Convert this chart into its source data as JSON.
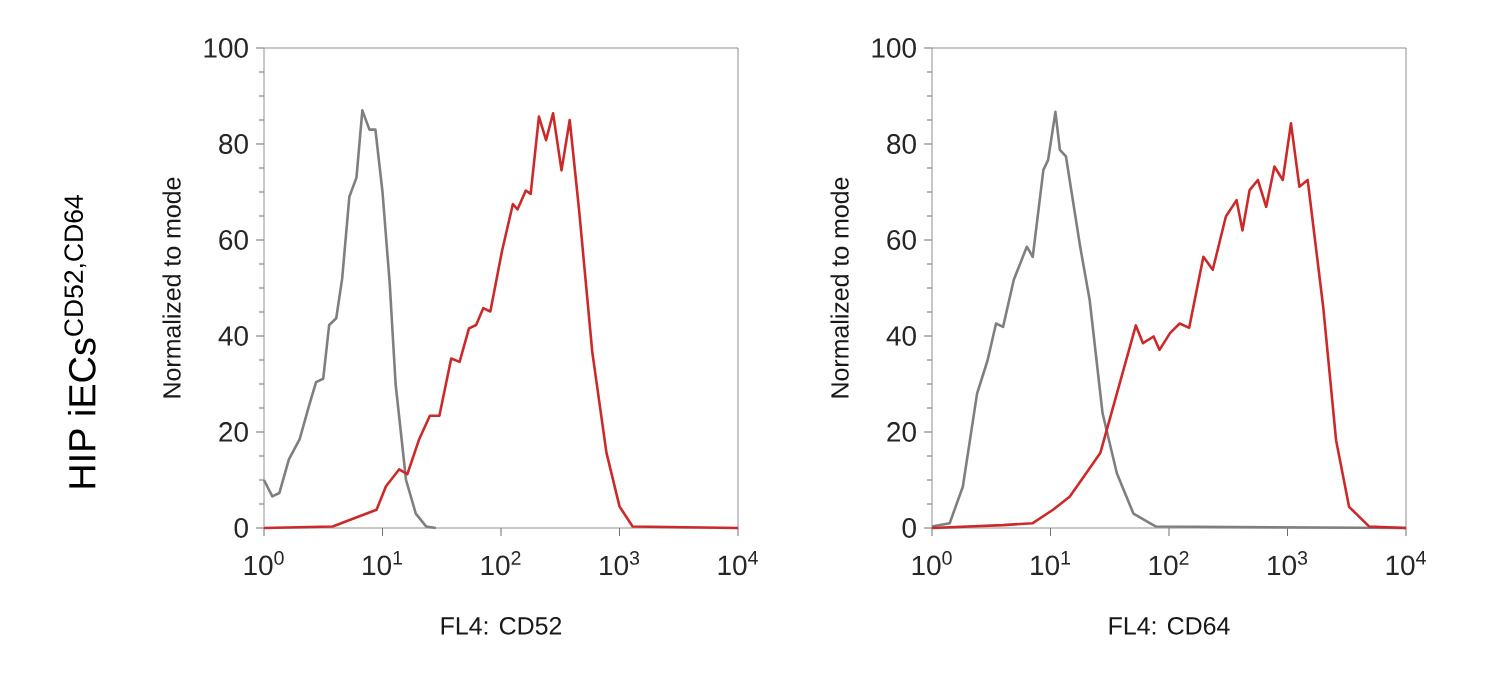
{
  "chart_data": [
    {
      "type": "line",
      "xlabel": "FL4: CD52",
      "ylabel": "Normalized to mode",
      "annotations": [
        "HIP iECs$^{CD52,CD64}$"
      ],
      "log": "x",
      "xlim": [
        1,
        10000
      ],
      "ylim": [
        0,
        100
      ],
      "xticks": [
        {
          "value": 1,
          "label": "10$^{0}$"
        },
        {
          "value": 10,
          "label": "10$^{1}$"
        },
        {
          "value": 100,
          "label": "10$^{2}$"
        },
        {
          "value": 1000,
          "label": "10$^{3}$"
        },
        {
          "value": 10000,
          "label": "10$^{4}$"
        }
      ],
      "yticks": [
        0,
        20,
        40,
        60,
        80,
        100
      ],
      "marker": "none",
      "line_style": "solid",
      "series": [
        {
          "color": "#7f7f7f",
          "x": [
            1,
            1.175,
            1.349,
            1.622,
            2.0,
            2.4,
            2.75,
            3.16,
            3.55,
            4.07,
            4.57,
            5.25,
            6.03,
            6.76,
            7.76,
            8.71,
            10,
            11.5,
            12.9,
            15.8,
            19.1,
            23.4,
            28.2
          ],
          "values": [
            10,
            6.6,
            7.3,
            14.3,
            18.5,
            25.5,
            30.4,
            31.1,
            42.3,
            43.7,
            52,
            69,
            73,
            87,
            83,
            83,
            70,
            51,
            30,
            10,
            3,
            0.3,
            0
          ]
        },
        {
          "color": "#cc2a2a",
          "x": [
            1,
            3.8,
            6.31,
            8.91,
            10.7,
            13.8,
            16.2,
            20.4,
            25.1,
            30.2,
            38.0,
            44.7,
            53.7,
            61.7,
            70.8,
            81.3,
            102,
            126,
            138,
            162,
            178,
            209,
            240,
            275,
            324,
            380,
            457,
            589,
            776,
            1000,
            1290,
            10000
          ],
          "values": [
            0,
            0.3,
            2.4,
            3.8,
            8.7,
            12.2,
            11.2,
            18.5,
            23.4,
            23.4,
            35.3,
            34.6,
            41.6,
            42.3,
            45.8,
            45.1,
            57.7,
            67.5,
            66.4,
            70.3,
            69.6,
            85.7,
            80.8,
            86.4,
            74.5,
            85,
            66,
            36.7,
            15.7,
            4.5,
            0.3,
            0
          ]
        }
      ]
    },
    {
      "type": "line",
      "xlabel": "FL4: CD64",
      "ylabel": "Normalized to mode",
      "log": "x",
      "xlim": [
        1,
        10000
      ],
      "ylim": [
        0,
        100
      ],
      "xticks": [
        {
          "value": 1,
          "label": "10$^{0}$"
        },
        {
          "value": 10,
          "label": "10$^{1}$"
        },
        {
          "value": 100,
          "label": "10$^{2}$"
        },
        {
          "value": 1000,
          "label": "10$^{3}$"
        },
        {
          "value": 10000,
          "label": "10$^{4}$"
        }
      ],
      "yticks": [
        0,
        20,
        40,
        60,
        80,
        100
      ],
      "marker": "none",
      "line_style": "solid",
      "series": [
        {
          "color": "#7f7f7f",
          "x": [
            1,
            1.41,
            1.82,
            2.4,
            2.95,
            3.47,
            3.98,
            4.9,
            6.31,
            7.08,
            8.71,
            9.55,
            11.0,
            12.0,
            13.5,
            17.8,
            21.4,
            27.5,
            36.3,
            50.1,
            77.6,
            10000
          ],
          "values": [
            0.3,
            1,
            8.6,
            28,
            35,
            42.6,
            41.9,
            51.7,
            58.6,
            56.5,
            74.6,
            76.7,
            86.7,
            78.8,
            77.4,
            58.6,
            47.5,
            23.9,
            11.4,
            3,
            0.3,
            0
          ]
        },
        {
          "color": "#cc2a2a",
          "x": [
            1,
            3.98,
            7.08,
            10.5,
            14.5,
            20.0,
            26.3,
            36.3,
            52.5,
            60.3,
            74.1,
            83.2,
            102,
            123,
            148,
            195,
            234,
            302,
            372,
            417,
            479,
            562,
            661,
            776,
            912,
            1070,
            1260,
            1480,
            2000,
            2570,
            3310,
            4900,
            10000
          ],
          "values": [
            0,
            0.6,
            1,
            3.8,
            6.5,
            11.4,
            15.6,
            28,
            42.2,
            38.5,
            39.9,
            37.1,
            40.6,
            42.6,
            41.7,
            56.5,
            53.8,
            64.9,
            68.3,
            62,
            70.4,
            72.5,
            66.9,
            75.3,
            72.5,
            84.3,
            71.1,
            72.5,
            46.1,
            18.3,
            4.4,
            0.3,
            0
          ]
        }
      ]
    }
  ]
}
